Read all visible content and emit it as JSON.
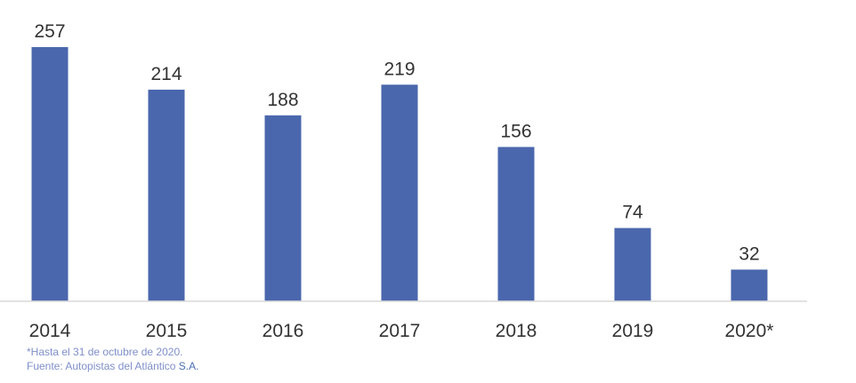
{
  "chart_data": {
    "type": "bar",
    "categories": [
      "2014",
      "2015",
      "2016",
      "2017",
      "2018",
      "2019",
      "2020*"
    ],
    "values": [
      257,
      214,
      188,
      219,
      156,
      74,
      32
    ],
    "data_labels": [
      "257",
      "214",
      "188",
      "219",
      "156",
      "74",
      "32"
    ],
    "ylim": [
      0,
      257
    ],
    "grid": false,
    "bar_color": "#4a67ad",
    "axis_color": "#d9d9d9"
  },
  "notes": {
    "footnote": "*Hasta el 31 de octubre de 2020.",
    "source_prefix": "Fuente: Autopistas del Atlántico ",
    "source_suffix": "S.A.",
    "text_color": "#7f8fc9",
    "accent_color": "#4a6fb5"
  }
}
